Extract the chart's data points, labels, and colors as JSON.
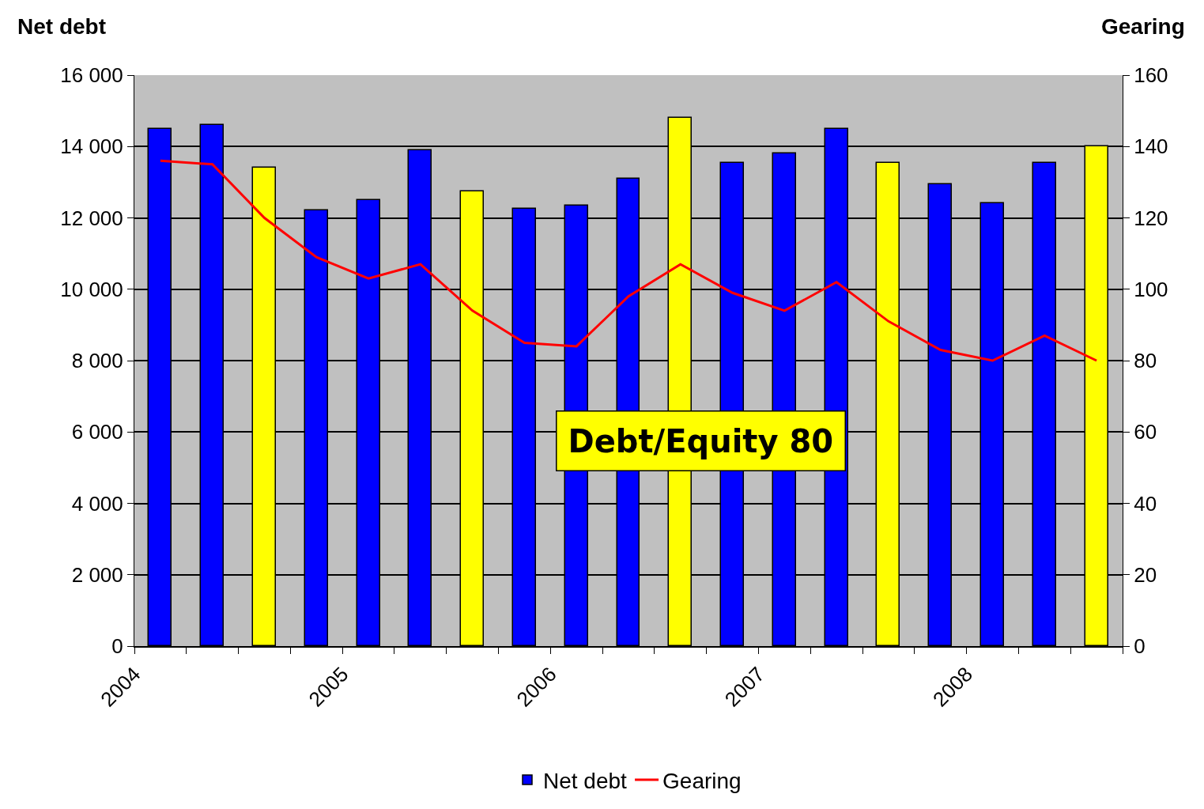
{
  "chart_data": {
    "type": "bar",
    "ylabel": "Net debt",
    "y2label": "Gearing",
    "x": [
      2004.125,
      2004.375,
      2004.625,
      2004.875,
      2005.125,
      2005.375,
      2005.625,
      2005.875,
      2006.125,
      2006.375,
      2006.625,
      2006.875,
      2007.125,
      2007.375,
      2007.625,
      2007.875,
      2008.125,
      2008.375,
      2008.625
    ],
    "series": [
      {
        "name": "Net debt",
        "color": "#0000ff",
        "colors": [
          "#0000ff",
          "#0000ff",
          "#ffff00",
          "#0000ff",
          "#0000ff",
          "#0000ff",
          "#ffff00",
          "#0000ff",
          "#0000ff",
          "#0000ff",
          "#ffff00",
          "#0000ff",
          "#0000ff",
          "#0000ff",
          "#ffff00",
          "#0000ff",
          "#0000ff",
          "#0000ff",
          "#ffff00"
        ],
        "values": [
          14500,
          14600,
          13400,
          12200,
          12500,
          13900,
          12750,
          12250,
          12350,
          13100,
          14800,
          13550,
          13800,
          14500,
          13550,
          12950,
          12400,
          13550,
          14000
        ]
      },
      {
        "name": "Gearing",
        "type": "line",
        "axis": "y2",
        "color": "#ff0000",
        "values": [
          136,
          135,
          120,
          109,
          103,
          107,
          94,
          85,
          84,
          98,
          107,
          99,
          94,
          102,
          91,
          83,
          80,
          87,
          80
        ]
      }
    ],
    "xlim": [
      2004,
      2008.75
    ],
    "xticks": [
      {
        "value": 2004,
        "label": "2004"
      },
      {
        "value": 2004.25,
        "label": null
      },
      {
        "value": 2004.5,
        "label": null
      },
      {
        "value": 2004.75,
        "label": null
      },
      {
        "value": 2005,
        "label": "2005"
      },
      {
        "value": 2005.25,
        "label": null
      },
      {
        "value": 2005.5,
        "label": null
      },
      {
        "value": 2005.75,
        "label": null
      },
      {
        "value": 2006,
        "label": "2006"
      },
      {
        "value": 2006.25,
        "label": null
      },
      {
        "value": 2006.5,
        "label": null
      },
      {
        "value": 2006.75,
        "label": null
      },
      {
        "value": 2007,
        "label": "2007"
      },
      {
        "value": 2007.25,
        "label": null
      },
      {
        "value": 2007.5,
        "label": null
      },
      {
        "value": 2007.75,
        "label": null
      },
      {
        "value": 2008,
        "label": "2008"
      },
      {
        "value": 2008.25,
        "label": null
      },
      {
        "value": 2008.5,
        "label": null
      },
      {
        "value": 2008.75,
        "label": null
      }
    ],
    "ylim": [
      0,
      16000
    ],
    "yticks": [
      0,
      {
        "value": 2000,
        "label": "2 000"
      },
      {
        "value": 4000,
        "label": "4 000"
      },
      {
        "value": 6000,
        "label": "6 000"
      },
      {
        "value": 8000,
        "label": "8 000"
      },
      {
        "value": 10000,
        "label": "10 000"
      },
      {
        "value": 12000,
        "label": "12 000"
      },
      {
        "value": 14000,
        "label": "14 000"
      },
      {
        "value": 16000,
        "label": "16 000"
      }
    ],
    "y2lim": [
      0,
      160
    ],
    "y2ticks": [
      0,
      20,
      40,
      60,
      80,
      100,
      120,
      140,
      160
    ],
    "grid": "y",
    "legend": "bottom",
    "annotations": [
      "Debt/Equity 80"
    ]
  }
}
